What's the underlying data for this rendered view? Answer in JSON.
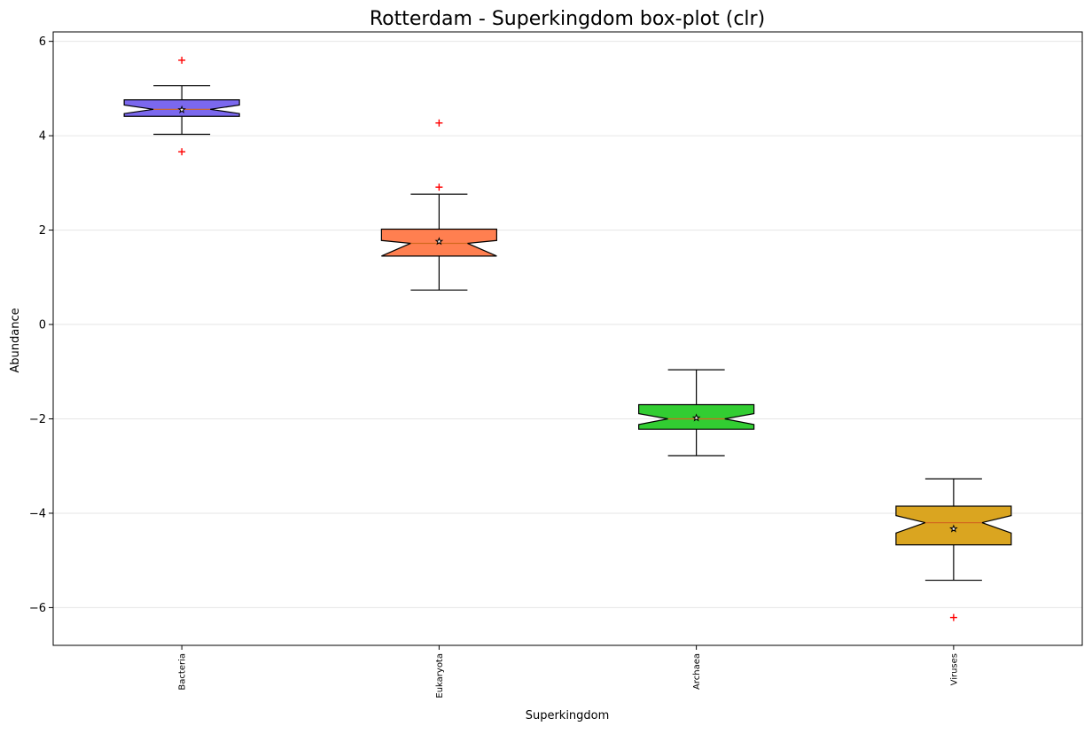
{
  "chart_data": {
    "type": "boxplot",
    "title": "Rotterdam - Superkingdom box-plot (clr)",
    "xlabel": "Superkingdom",
    "ylabel": "Abundance",
    "ylim": [
      -6.8,
      6.2
    ],
    "yticks": [
      6,
      4,
      2,
      0,
      -2,
      -4,
      -6
    ],
    "ytick_labels": [
      "6",
      "4",
      "2",
      "0",
      "−2",
      "−4",
      "−6"
    ],
    "grid": "horizontal",
    "notched": true,
    "categories": [
      "Bacteria",
      "Eukaryota",
      "Archaea",
      "Viruses"
    ],
    "boxes": [
      {
        "category": "Bacteria",
        "color": "#7b68ee",
        "whisker_low": 4.03,
        "q1": 4.41,
        "median": 4.56,
        "q3": 4.76,
        "whisker_high": 5.06,
        "mean": 4.55,
        "notch_low": 4.47,
        "notch_high": 4.65,
        "outliers": [
          5.6,
          3.66
        ]
      },
      {
        "category": "Eukaryota",
        "color": "#ff7f50",
        "whisker_low": 0.73,
        "q1": 1.45,
        "median": 1.72,
        "q3": 2.02,
        "whisker_high": 2.76,
        "mean": 1.76,
        "notch_low": 1.45,
        "notch_high": 1.78,
        "outliers": [
          4.27,
          2.91
        ]
      },
      {
        "category": "Archaea",
        "color": "#32cd32",
        "whisker_low": -2.78,
        "q1": -2.22,
        "median": -2.0,
        "q3": -1.7,
        "whisker_high": -0.96,
        "mean": -1.98,
        "notch_low": -2.12,
        "notch_high": -1.89,
        "outliers": []
      },
      {
        "category": "Viruses",
        "color": "#daa520",
        "whisker_low": -5.42,
        "q1": -4.67,
        "median": -4.2,
        "q3": -3.85,
        "whisker_high": -3.27,
        "mean": -4.33,
        "notch_low": -4.42,
        "notch_high": -4.05,
        "outliers": [
          -6.21
        ]
      }
    ]
  }
}
